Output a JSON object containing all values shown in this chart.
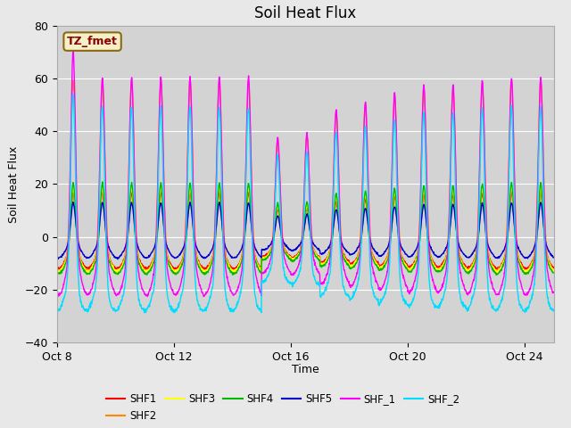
{
  "title": "Soil Heat Flux",
  "xlabel": "Time",
  "ylabel": "Soil Heat Flux",
  "ylim": [
    -40,
    80
  ],
  "yticks": [
    -40,
    -20,
    0,
    20,
    40,
    60,
    80
  ],
  "x_tick_labels": [
    "Oct 8",
    "Oct 12",
    "Oct 16",
    "Oct 20",
    "Oct 24"
  ],
  "x_tick_positions": [
    0,
    4,
    8,
    12,
    16
  ],
  "annotation_text": "TZ_fmet",
  "annotation_box_color": "#f5f0c8",
  "annotation_border_color": "#8B6914",
  "annotation_text_color": "#8B0000",
  "series_colors": {
    "SHF1": "#ff0000",
    "SHF2": "#ff8800",
    "SHF3": "#ffff00",
    "SHF4": "#00bb00",
    "SHF5": "#0000cc",
    "SHF_1": "#ff00ff",
    "SHF_2": "#00ddff"
  },
  "background_color": "#e8e8e8",
  "plot_bg_color": "#d3d3d3",
  "grid_color": "#ffffff",
  "title_fontsize": 12,
  "days": 17,
  "pts_per_day": 96
}
